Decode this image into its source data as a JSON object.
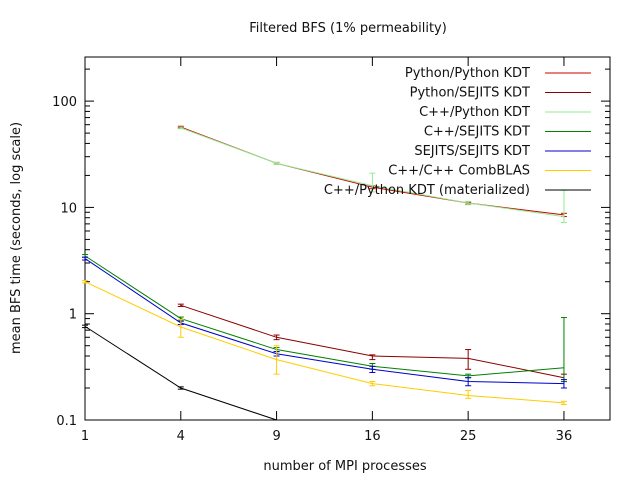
{
  "chart_data": {
    "type": "line",
    "title": "Filtered BFS (1% permeability)",
    "xlabel": "number of MPI processes",
    "ylabel": "mean BFS time (seconds, log scale)",
    "x_scale": "sqrt",
    "y_scale": "log",
    "xlim": [
      1,
      42
    ],
    "ylim": [
      0.1,
      260
    ],
    "x_ticks": [
      1,
      4,
      9,
      16,
      25,
      36
    ],
    "x_tick_labels": [
      "1",
      "4",
      "9",
      "16",
      "25",
      "36"
    ],
    "y_ticks": [
      0.1,
      1,
      10,
      100
    ],
    "y_tick_labels": [
      "0.1",
      "1",
      "10",
      "100"
    ],
    "grid": false,
    "legend_position": "top-right",
    "series": [
      {
        "name": "Python/Python KDT",
        "color": "#cc0000",
        "points": [
          {
            "x": 4,
            "y": 57,
            "lo": 56,
            "hi": 58
          },
          {
            "x": 9,
            "y": 26,
            "lo": 25.5,
            "hi": 26.5
          },
          {
            "x": 16,
            "y": 15.5,
            "lo": 15,
            "hi": 16
          },
          {
            "x": 25,
            "y": 11,
            "lo": 10.7,
            "hi": 11.2
          },
          {
            "x": 36,
            "y": 8.5,
            "lo": 8.2,
            "hi": 8.8
          }
        ]
      },
      {
        "name": "Python/SEJITS KDT",
        "color": "#8b0000",
        "points": [
          {
            "x": 4,
            "y": 1.2,
            "lo": 1.17,
            "hi": 1.23
          },
          {
            "x": 9,
            "y": 0.6,
            "lo": 0.57,
            "hi": 0.63
          },
          {
            "x": 16,
            "y": 0.4,
            "lo": 0.37,
            "hi": 0.41
          },
          {
            "x": 25,
            "y": 0.38,
            "lo": 0.3,
            "hi": 0.46
          },
          {
            "x": 36,
            "y": 0.25,
            "lo": 0.23,
            "hi": 0.27
          }
        ]
      },
      {
        "name": "C++/Python KDT",
        "color": "#90ee90",
        "points": [
          {
            "x": 4,
            "y": 56,
            "lo": 55,
            "hi": 57
          },
          {
            "x": 9,
            "y": 26,
            "lo": 25.5,
            "hi": 26.5
          },
          {
            "x": 16,
            "y": 16,
            "lo": 14,
            "hi": 21
          },
          {
            "x": 25,
            "y": 11,
            "lo": 10.6,
            "hi": 11.4
          },
          {
            "x": 36,
            "y": 8.2,
            "lo": 7.2,
            "hi": 14.5
          }
        ]
      },
      {
        "name": "C++/SEJITS KDT",
        "color": "#008000",
        "points": [
          {
            "x": 1,
            "y": 3.5,
            "lo": 3.4,
            "hi": 3.6
          },
          {
            "x": 4,
            "y": 0.9,
            "lo": 0.87,
            "hi": 0.93
          },
          {
            "x": 9,
            "y": 0.46,
            "lo": 0.44,
            "hi": 0.48
          },
          {
            "x": 16,
            "y": 0.32,
            "lo": 0.3,
            "hi": 0.34
          },
          {
            "x": 25,
            "y": 0.26,
            "lo": 0.25,
            "hi": 0.27
          },
          {
            "x": 36,
            "y": 0.31,
            "lo": 0.23,
            "hi": 0.92
          }
        ]
      },
      {
        "name": "SEJITS/SEJITS KDT",
        "color": "#0000cc",
        "points": [
          {
            "x": 1,
            "y": 3.3,
            "lo": 3.2,
            "hi": 3.4
          },
          {
            "x": 4,
            "y": 0.82,
            "lo": 0.79,
            "hi": 0.85
          },
          {
            "x": 9,
            "y": 0.42,
            "lo": 0.4,
            "hi": 0.44
          },
          {
            "x": 16,
            "y": 0.3,
            "lo": 0.28,
            "hi": 0.32
          },
          {
            "x": 25,
            "y": 0.23,
            "lo": 0.21,
            "hi": 0.25
          },
          {
            "x": 36,
            "y": 0.22,
            "lo": 0.2,
            "hi": 0.24
          }
        ]
      },
      {
        "name": "C++/C++ CombBLAS",
        "color": "#ffcc00",
        "points": [
          {
            "x": 1,
            "y": 2.0,
            "lo": 1.95,
            "hi": 2.05
          },
          {
            "x": 4,
            "y": 0.75,
            "lo": 0.6,
            "hi": 0.88
          },
          {
            "x": 9,
            "y": 0.37,
            "lo": 0.27,
            "hi": 0.5
          },
          {
            "x": 16,
            "y": 0.22,
            "lo": 0.21,
            "hi": 0.23
          },
          {
            "x": 25,
            "y": 0.17,
            "lo": 0.16,
            "hi": 0.19
          },
          {
            "x": 36,
            "y": 0.145,
            "lo": 0.14,
            "hi": 0.15
          }
        ]
      },
      {
        "name": "C++/Python KDT (materialized)",
        "color": "#000000",
        "points": [
          {
            "x": 1,
            "y": 0.76,
            "lo": 0.74,
            "hi": 0.78
          },
          {
            "x": 4,
            "y": 0.2,
            "lo": 0.195,
            "hi": 0.205
          },
          {
            "x": 9,
            "y": 0.1
          }
        ]
      }
    ]
  }
}
